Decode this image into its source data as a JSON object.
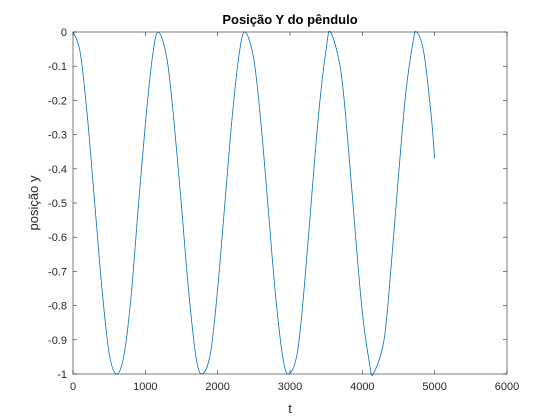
{
  "chart_data": {
    "type": "line",
    "title": "Posição Y do pêndulo",
    "xlabel": "t",
    "ylabel": "posição y",
    "xlim": [
      0,
      6000
    ],
    "ylim": [
      -1,
      0
    ],
    "xticks": [
      0,
      1000,
      2000,
      3000,
      4000,
      5000,
      6000
    ],
    "xtick_labels": [
      "0",
      "1000",
      "2000",
      "3000",
      "4000",
      "5000",
      "6000"
    ],
    "yticks": [
      0,
      -0.1,
      -0.2,
      -0.3,
      -0.4,
      -0.5,
      -0.6,
      -0.7,
      -0.8,
      -0.9,
      -1
    ],
    "ytick_labels": [
      "0",
      "-0.1",
      "-0.2",
      "-0.3",
      "-0.4",
      "-0.5",
      "-0.6",
      "-0.7",
      "-0.8",
      "-0.9",
      "-1"
    ],
    "grid": false,
    "box": true,
    "series": [
      {
        "color": "#0072BD",
        "x": [
          0,
          100,
          200,
          300,
          400,
          500,
          600,
          700,
          800,
          900,
          1000,
          1100,
          1180,
          1300,
          1400,
          1500,
          1600,
          1700,
          1785,
          1900,
          2000,
          2100,
          2200,
          2300,
          2380,
          2500,
          2600,
          2700,
          2800,
          2900,
          2980,
          3100,
          3200,
          3300,
          3400,
          3500,
          3560,
          3700,
          3800,
          3900,
          4000,
          4100,
          4150,
          4300,
          4400,
          4500,
          4600,
          4700,
          4750,
          4850,
          4950,
          5000
        ],
        "y": [
          0,
          -0.06,
          -0.25,
          -0.5,
          -0.75,
          -0.94,
          -1.0,
          -0.95,
          -0.78,
          -0.52,
          -0.27,
          -0.07,
          0,
          -0.08,
          -0.27,
          -0.51,
          -0.76,
          -0.95,
          -1.0,
          -0.94,
          -0.75,
          -0.5,
          -0.25,
          -0.06,
          0,
          -0.08,
          -0.27,
          -0.52,
          -0.77,
          -0.95,
          -1.0,
          -0.94,
          -0.74,
          -0.48,
          -0.23,
          -0.05,
          0,
          -0.11,
          -0.32,
          -0.58,
          -0.82,
          -0.97,
          -1.0,
          -0.9,
          -0.68,
          -0.42,
          -0.18,
          -0.03,
          0,
          -0.06,
          -0.24,
          -0.37
        ]
      }
    ]
  }
}
